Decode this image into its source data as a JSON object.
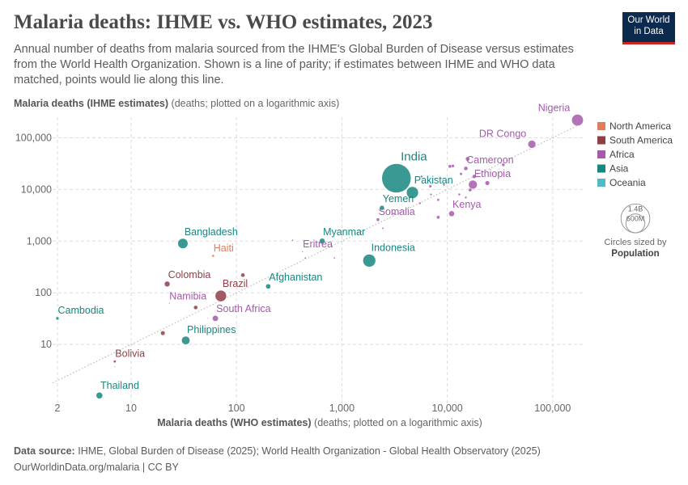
{
  "header": {
    "title": "Malaria deaths: IHME vs. WHO estimates, 2023",
    "subtitle": "Annual number of deaths from malaria sourced from the IHME's Global Burden of Disease versus estimates from the World Health Organization. Shown is a line of parity; if estimates between IHME and WHO data matched, points would lie along this line.",
    "logo": [
      "Our World",
      "in Data"
    ]
  },
  "footer": {
    "source_label": "Data source:",
    "source": "IHME, Global Burden of Disease (2025); World Health Organization - Global Health Observatory (2025)",
    "credit": "OurWorldinData.org/malaria | CC BY"
  },
  "chart_data": {
    "type": "scatter",
    "y_axis_label": "Malaria deaths (IHME estimates)",
    "y_axis_note": "(deaths; plotted on a logarithmic axis)",
    "x_axis_label": "Malaria deaths (WHO estimates)",
    "x_axis_note": "(deaths; plotted on a logarithmic axis)",
    "xlog": true,
    "ylog": true,
    "grid": true,
    "parity_line": true,
    "legend_position": "right",
    "xlim": [
      1.8,
      200000
    ],
    "ylim": [
      0.7,
      250000
    ],
    "xticks": [
      2,
      10,
      100,
      {
        "value": 1000,
        "label": "1,000"
      },
      {
        "value": 10000,
        "label": "10,000"
      },
      {
        "value": 100000,
        "label": "100,000"
      }
    ],
    "yticks": [
      10,
      100,
      {
        "value": 1000,
        "label": "1,000"
      },
      {
        "value": 10000,
        "label": "10,000"
      },
      {
        "value": 100000,
        "label": "100,000"
      }
    ],
    "size_legend": {
      "title": "Circles sized by",
      "variable": "Population",
      "values": [
        1400000000,
        600000000
      ],
      "value_labels": [
        "1.4B",
        "600M"
      ]
    },
    "series": [
      {
        "name": "North America",
        "color": "#e07b5c",
        "x": [
          60
        ],
        "values": [
          520
        ],
        "sizes": [
          11700000
        ],
        "labels": [
          "Haiti"
        ]
      },
      {
        "name": "South America",
        "color": "#8f3f44",
        "x": [
          22,
          71,
          7,
          20,
          41,
          115
        ],
        "values": [
          148,
          87,
          4.7,
          16.6,
          52,
          220
        ],
        "sizes": [
          52000000,
          216000000,
          12000000,
          34000000,
          28000000,
          28000000
        ],
        "labels": [
          "Colombia",
          "Brazil",
          "Bolivia",
          null,
          null,
          null
        ]
      },
      {
        "name": "Africa",
        "color": "#a55aab",
        "x": [
          172000,
          63500,
          15000,
          17500,
          2200,
          11000,
          424,
          23,
          63,
          4,
          7,
          53,
          340,
          470,
          450,
          850,
          3100,
          2450,
          5700,
          6900,
          7000,
          8200,
          9300,
          10600,
          11300,
          13000,
          13500,
          15000,
          15600,
          18000,
          24000,
          34000,
          8200,
          16500,
          5500
        ],
        "values": [
          220000,
          75000,
          25500,
          12400,
          2600,
          3400,
          630,
          63,
          32,
          4.2,
          3.7,
          32,
          1040,
          870,
          470,
          470,
          3400,
          1780,
          17800,
          11500,
          8000,
          6300,
          12400,
          28000,
          28500,
          8000,
          20000,
          7000,
          39000,
          17800,
          13300,
          30000,
          2900,
          9800,
          5400
        ],
        "sizes": [
          227000000,
          105000000,
          28000000,
          128000000,
          18000000,
          55000000,
          3700000,
          2600000,
          60000000,
          2000000,
          2000000,
          2000000,
          5000000,
          5000000,
          6000000,
          5000000,
          8000000,
          6000000,
          10000000,
          14000000,
          8000000,
          12000000,
          10000000,
          20000000,
          17000000,
          10000000,
          14000000,
          9000000,
          30000000,
          26000000,
          35000000,
          17000000,
          20000000,
          20000000,
          9000000
        ],
        "labels": [
          "Nigeria",
          "DR Congo",
          "Cameroon",
          "Ethiopia",
          "Somalia",
          "Kenya",
          "Eritrea",
          "Namibia",
          "South Africa",
          null,
          null,
          null,
          null,
          null,
          null,
          null,
          null,
          null,
          null,
          null,
          null,
          null,
          null,
          null,
          null,
          null,
          null,
          null,
          null,
          null,
          null,
          null,
          null,
          null,
          null
        ]
      },
      {
        "name": "Asia",
        "color": "#18877f",
        "x": [
          3290,
          4670,
          2400,
          31,
          650,
          1820,
          200,
          2,
          33,
          5
        ],
        "values": [
          16500,
          8700,
          4400,
          900,
          1000,
          420,
          133,
          32,
          12,
          1.03
        ],
        "sizes": [
          1430000000,
          240000000,
          39000000,
          173000000,
          54000000,
          277000000,
          42000000,
          17000000,
          117000000,
          72000000
        ],
        "labels": [
          "India",
          "Pakistan",
          "Yemen",
          "Bangladesh",
          "Myanmar",
          "Indonesia",
          "Afghanistan",
          "Cambodia",
          "Philippines",
          "Thailand"
        ]
      },
      {
        "name": "Oceania",
        "color": "#55b8c6",
        "x": [],
        "values": [],
        "sizes": [],
        "labels": []
      }
    ]
  }
}
